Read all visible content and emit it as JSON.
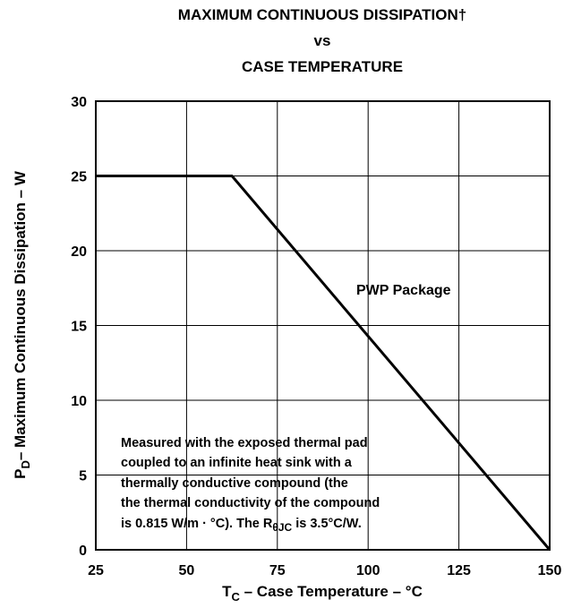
{
  "chart_data": {
    "type": "line",
    "title": [
      "MAXIMUM CONTINUOUS DISSIPATION†",
      "vs",
      "CASE TEMPERATURE"
    ],
    "x_label": {
      "symbol": "T",
      "subscript": "C",
      "text": " – Case Temperature – °C"
    },
    "y_label": {
      "symbol": "P",
      "subscript": "D",
      "text": "– Maximum Continuous Dissipation – W"
    },
    "x": [
      25,
      62.5,
      150
    ],
    "series": [
      {
        "name": "PWP Package",
        "color": "#000000",
        "values": [
          25,
          25,
          0
        ]
      }
    ],
    "xlim": [
      25,
      150
    ],
    "xticks": [
      25,
      50,
      75,
      100,
      125,
      150
    ],
    "ylim": [
      0,
      30
    ],
    "yticks": [
      0,
      5,
      10,
      15,
      20,
      25,
      30
    ],
    "grid": true,
    "annotation": {
      "lines": [
        "Measured with the exposed thermal pad",
        "coupled to an infinite heat sink with a",
        "thermally conductive compound (the",
        "the thermal conductivity of the compound"
      ],
      "last_line": [
        "is 0.815 W/m · °C). The R",
        "θJC",
        " is 3.5°C/W."
      ]
    }
  }
}
